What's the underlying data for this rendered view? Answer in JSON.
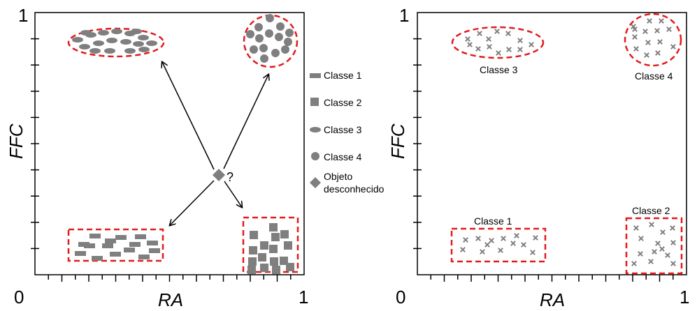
{
  "left_panel": {
    "y_axis_label": "FFC",
    "x_axis_label": "RA",
    "origin_label": "0",
    "y_max_label": "1",
    "x_max_label": "1",
    "query_label": "?"
  },
  "legend": [
    {
      "label": "Classe 1",
      "shape": "rectangle-icon"
    },
    {
      "label": "Classe 2",
      "shape": "square-icon"
    },
    {
      "label": "Classe 3",
      "shape": "ellipse-icon"
    },
    {
      "label": "Classe 4",
      "shape": "circle-icon"
    },
    {
      "label_line1": "Objeto",
      "label_line2": "desconhecido",
      "shape": "diamond-icon"
    }
  ],
  "right_panel": {
    "y_axis_label": "FFC",
    "x_axis_label": "RA",
    "origin_label": "0",
    "y_max_label": "1",
    "x_max_label": "1",
    "clusters": [
      {
        "label": "Classe 1"
      },
      {
        "label": "Classe 2"
      },
      {
        "label": "Classe 3"
      },
      {
        "label": "Classe 4"
      }
    ]
  },
  "colors": {
    "marker": "#7f7f7f",
    "cluster_border": "#e31a1c",
    "axis": "#000000"
  }
}
